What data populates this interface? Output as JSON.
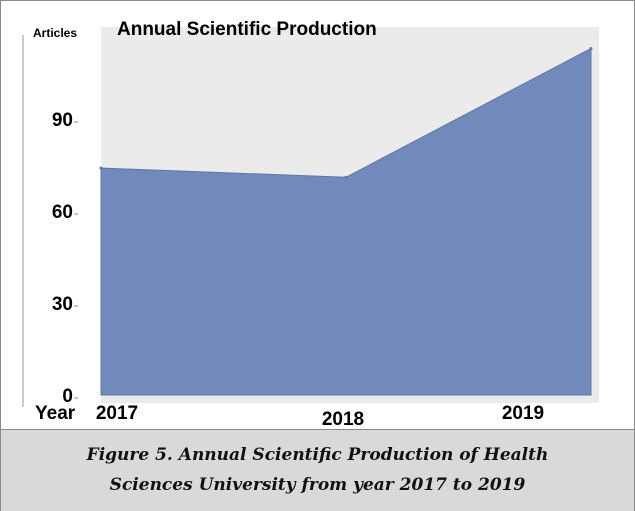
{
  "chart_data": {
    "type": "area",
    "title": "Annual Scientific Production",
    "ylabel": "Articles",
    "xlabel": "Year",
    "x": [
      "2017",
      "2018",
      "2019"
    ],
    "y": [
      74,
      71,
      113
    ],
    "ylim": [
      0,
      120
    ],
    "yticks": [
      0,
      30,
      60,
      90
    ],
    "grid": false,
    "fill_color": "#7289bb",
    "panel_color": "#ebebeb"
  },
  "caption": {
    "line1": "Figure 5. Annual Scientific Production of Health",
    "line2": "Sciences University from year 2017 to 2019"
  }
}
